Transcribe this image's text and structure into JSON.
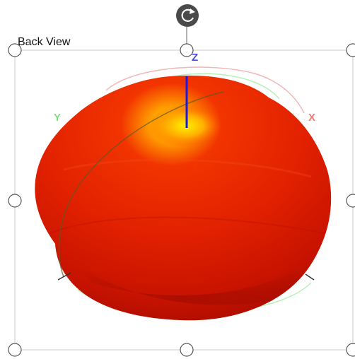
{
  "view": {
    "title": "Back View"
  },
  "axes": [
    {
      "name": "z-axis-label",
      "label": "Z",
      "color": "#4a4ae0"
    },
    {
      "name": "y-axis-label",
      "label": "Y",
      "color": "#7ddc7d"
    },
    {
      "name": "x-axis-label",
      "label": "X",
      "color": "#f07b7b"
    }
  ],
  "colors": {
    "surface_dark": "#c71400",
    "surface_mid": "#e52a00",
    "hotspot": "#ffe400",
    "frame": "#c8c8c8",
    "handle": "#555555",
    "rotate_handle": "#4a4a4a",
    "z_axis_line": "#1a1ae6"
  },
  "icons": {
    "rotate_handle": "rotate-icon"
  }
}
